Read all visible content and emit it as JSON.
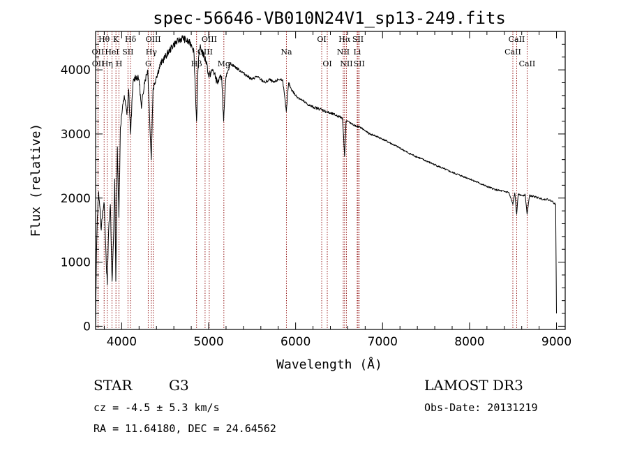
{
  "chart_data": {
    "type": "line",
    "title": "spec-56646-VB010N24V1_sp13-249.fits",
    "xlabel": "Wavelength (Å)",
    "ylabel": "Flux (relative)",
    "xlim": [
      3700,
      9100
    ],
    "ylim": [
      -50,
      4600
    ],
    "x_ticks": [
      4000,
      5000,
      6000,
      7000,
      8000,
      9000
    ],
    "y_ticks": [
      0,
      1000,
      2000,
      3000,
      4000
    ],
    "spectrum": {
      "x": [
        3700,
        3710,
        3720,
        3735,
        3750,
        3765,
        3780,
        3800,
        3820,
        3834,
        3850,
        3870,
        3889,
        3905,
        3920,
        3933,
        3950,
        3968,
        3985,
        4000,
        4030,
        4060,
        4080,
        4101,
        4130,
        4160,
        4200,
        4227,
        4260,
        4300,
        4320,
        4340,
        4360,
        4400,
        4450,
        4500,
        4550,
        4600,
        4650,
        4700,
        4750,
        4800,
        4830,
        4861,
        4880,
        4900,
        4920,
        4950,
        4980,
        5000,
        5050,
        5100,
        5150,
        5172,
        5200,
        5250,
        5300,
        5350,
        5400,
        5450,
        5500,
        5550,
        5600,
        5650,
        5700,
        5750,
        5800,
        5850,
        5893,
        5920,
        5950,
        6000,
        6050,
        6100,
        6150,
        6200,
        6250,
        6300,
        6350,
        6400,
        6450,
        6500,
        6540,
        6563,
        6580,
        6600,
        6650,
        6700,
        6750,
        6800,
        6850,
        6900,
        6950,
        7000,
        7100,
        7200,
        7300,
        7400,
        7500,
        7600,
        7700,
        7800,
        7900,
        8000,
        8100,
        8200,
        8300,
        8400,
        8450,
        8498,
        8520,
        8542,
        8560,
        8600,
        8640,
        8662,
        8690,
        8750,
        8800,
        8850,
        8900,
        8950,
        8990,
        9000
      ],
      "y": [
        0,
        1100,
        1700,
        2100,
        1850,
        1500,
        1800,
        1900,
        1100,
        650,
        1500,
        1900,
        700,
        1300,
        2300,
        700,
        2800,
        1700,
        3100,
        3300,
        3600,
        3300,
        3700,
        3000,
        3800,
        3900,
        3850,
        3400,
        3800,
        4000,
        3300,
        2600,
        3700,
        3900,
        4100,
        4200,
        4300,
        4400,
        4450,
        4500,
        4450,
        4400,
        4300,
        3200,
        4100,
        4350,
        4300,
        4200,
        4100,
        3900,
        4000,
        3800,
        3900,
        3200,
        3900,
        4100,
        4050,
        4000,
        3950,
        3900,
        3850,
        3900,
        3850,
        3800,
        3850,
        3800,
        3850,
        3850,
        3350,
        3800,
        3700,
        3600,
        3550,
        3500,
        3450,
        3420,
        3400,
        3380,
        3350,
        3320,
        3300,
        3270,
        3250,
        2650,
        3200,
        3200,
        3150,
        3120,
        3100,
        3050,
        3000,
        2980,
        2950,
        2920,
        2850,
        2780,
        2700,
        2640,
        2580,
        2520,
        2460,
        2400,
        2350,
        2300,
        2240,
        2180,
        2130,
        2100,
        2090,
        1900,
        2080,
        1750,
        2060,
        2040,
        2050,
        1750,
        2040,
        2020,
        2000,
        1980,
        1980,
        1950,
        1900,
        200
      ]
    },
    "spectral_lines": [
      {
        "label": "Hθ",
        "wavelength": 3798,
        "row": 0
      },
      {
        "label": "OII",
        "wavelength": 3727,
        "row": 1
      },
      {
        "label": "OII",
        "wavelength": 3729,
        "row": 2
      },
      {
        "label": "HeI",
        "wavelength": 3889,
        "row": 1
      },
      {
        "label": "Hη",
        "wavelength": 3835,
        "row": 2
      },
      {
        "label": "K",
        "wavelength": 3934,
        "row": 0
      },
      {
        "label": "SII",
        "wavelength": 4072,
        "row": 1
      },
      {
        "label": "H",
        "wavelength": 3969,
        "row": 2
      },
      {
        "label": "Hδ",
        "wavelength": 4102,
        "row": 0
      },
      {
        "label": "OIII",
        "wavelength": 4363,
        "row": 0
      },
      {
        "label": "Hγ",
        "wavelength": 4341,
        "row": 1
      },
      {
        "label": "G",
        "wavelength": 4305,
        "row": 2
      },
      {
        "label": "Hβ",
        "wavelength": 4861,
        "row": 2
      },
      {
        "label": "OIII",
        "wavelength": 5007,
        "row": 0
      },
      {
        "label": "OIII",
        "wavelength": 4959,
        "row": 1
      },
      {
        "label": "Mg",
        "wavelength": 5175,
        "row": 2
      },
      {
        "label": "Na",
        "wavelength": 5894,
        "row": 1
      },
      {
        "label": "OI",
        "wavelength": 6300,
        "row": 0
      },
      {
        "label": "OI",
        "wavelength": 6364,
        "row": 2
      },
      {
        "label": "Hα",
        "wavelength": 6563,
        "row": 0
      },
      {
        "label": "NII",
        "wavelength": 6548,
        "row": 1
      },
      {
        "label": "NII",
        "wavelength": 6584,
        "row": 2
      },
      {
        "label": "SII",
        "wavelength": 6717,
        "row": 0
      },
      {
        "label": "Li",
        "wavelength": 6708,
        "row": 1
      },
      {
        "label": "SII",
        "wavelength": 6731,
        "row": 2
      },
      {
        "label": "CaII",
        "wavelength": 8542,
        "row": 0
      },
      {
        "label": "CaII",
        "wavelength": 8498,
        "row": 1
      },
      {
        "label": "CaII",
        "wavelength": 8662,
        "row": 2
      }
    ],
    "line_color": "#8b0000",
    "spectrum_color": "#000000"
  },
  "info": {
    "class": "STAR",
    "subclass": "G3",
    "redshift": "cz = -4.5 ± 5.3 km/s",
    "coords": "RA =  11.64180, DEC =  24.64562",
    "survey": "LAMOST DR3",
    "obs_date": "Obs-Date: 20131219"
  }
}
